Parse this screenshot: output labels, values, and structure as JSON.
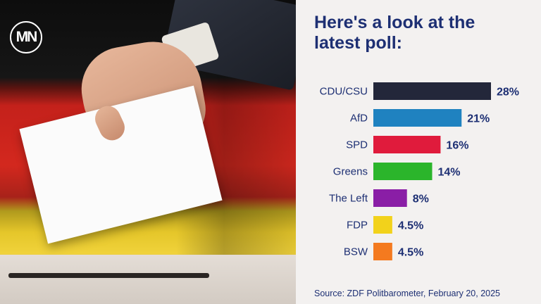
{
  "logo": {
    "text": "MN"
  },
  "headline": "Here's a look at the latest poll:",
  "source": "Source: ZDF Politbarometer, February 20, 2025",
  "chart_data": {
    "type": "bar",
    "orientation": "horizontal",
    "categories": [
      "CDU/CSU",
      "AfD",
      "SPD",
      "Greens",
      "The Left",
      "FDP",
      "BSW"
    ],
    "values": [
      28,
      21,
      16,
      14,
      8,
      4.5,
      4.5
    ],
    "value_labels": [
      "28%",
      "21%",
      "16%",
      "14%",
      "8%",
      "4.5%",
      "4.5%"
    ],
    "colors": [
      "#23273a",
      "#1f82c0",
      "#e01b3c",
      "#2bb52b",
      "#8a1ea6",
      "#f2d21b",
      "#f47a1f"
    ],
    "unit": "%",
    "xlim": [
      0,
      28
    ],
    "grid": false,
    "legend": "none"
  }
}
